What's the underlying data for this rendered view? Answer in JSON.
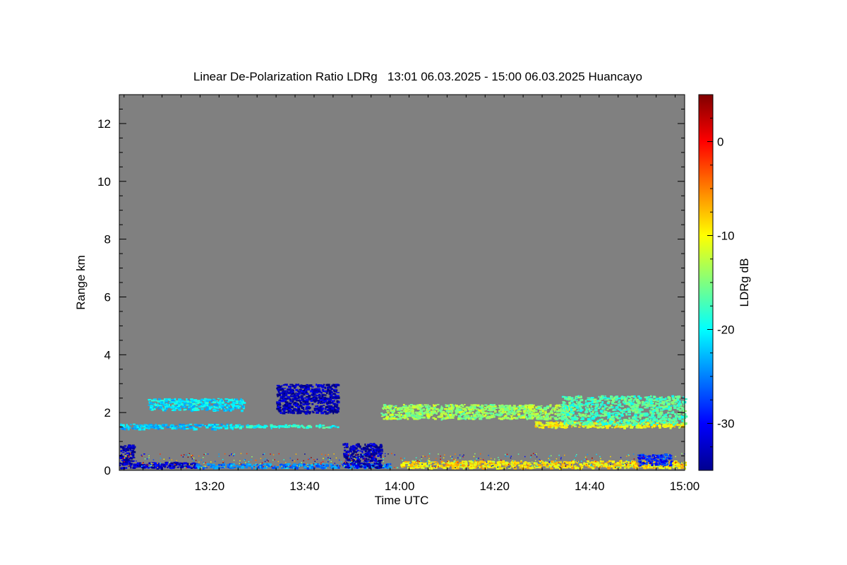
{
  "chart_data": {
    "type": "heatmap",
    "title": "Linear De-Polarization Ratio LDRg   13:01 06.03.2025 - 15:00 06.03.2025 Huancayo",
    "xlabel": "Time UTC",
    "ylabel": "Range km",
    "x_range_minutes_utc": [
      781,
      900
    ],
    "x_ticks": [
      {
        "minute": 800,
        "label": "13:20"
      },
      {
        "minute": 820,
        "label": "13:40"
      },
      {
        "minute": 840,
        "label": "14:00"
      },
      {
        "minute": 860,
        "label": "14:20"
      },
      {
        "minute": 880,
        "label": "14:40"
      },
      {
        "minute": 900,
        "label": "15:00"
      }
    ],
    "ylim": [
      0,
      13
    ],
    "y_ticks": [
      {
        "value": 0,
        "label": "0"
      },
      {
        "value": 2,
        "label": "2"
      },
      {
        "value": 4,
        "label": "4"
      },
      {
        "value": 6,
        "label": "6"
      },
      {
        "value": 8,
        "label": "8"
      },
      {
        "value": 10,
        "label": "10"
      },
      {
        "value": 12,
        "label": "12"
      }
    ],
    "background_color": "#808080",
    "colorbar": {
      "label": "LDRg dB",
      "range": [
        -35,
        5
      ],
      "ticks": [
        {
          "value": 0,
          "label": "0"
        },
        {
          "value": -10,
          "label": "-10"
        },
        {
          "value": -20,
          "label": "-20"
        },
        {
          "value": -30,
          "label": "-30"
        }
      ],
      "colormap": "jet"
    },
    "features": [
      {
        "name": "near-surface layer west",
        "t_start": 781,
        "t_end": 797,
        "z_bottom": 0.1,
        "z_top": 0.3,
        "ldr_db": -32
      },
      {
        "name": "near-surface layer west high",
        "t_start": 781,
        "t_end": 784,
        "z_bottom": 0.2,
        "z_top": 0.9,
        "ldr_db": -33
      },
      {
        "name": "near-surface layer mid",
        "t_start": 797,
        "t_end": 838,
        "z_bottom": 0.1,
        "z_top": 0.25,
        "ldr_db": -25
      },
      {
        "name": "near-surface aerosol east",
        "t_start": 840,
        "t_end": 900,
        "z_bottom": 0.1,
        "z_top": 0.35,
        "ldr_db": -9
      },
      {
        "name": "layer 1.5 km west",
        "t_start": 781,
        "t_end": 805,
        "z_bottom": 1.45,
        "z_top": 1.62,
        "ldr_db": -22
      },
      {
        "name": "layer 1.5 km mid",
        "t_start": 805,
        "t_end": 827,
        "z_bottom": 1.5,
        "z_top": 1.6,
        "ldr_db": -19
      },
      {
        "name": "layer 2.3 km west",
        "t_start": 787,
        "t_end": 807,
        "z_bottom": 2.1,
        "z_top": 2.5,
        "ldr_db": -21
      },
      {
        "name": "plume 13:35-13:45",
        "t_start": 814,
        "t_end": 827,
        "z_bottom": 2.0,
        "z_top": 3.0,
        "ldr_db": -33
      },
      {
        "name": "plume 13:50",
        "t_start": 828,
        "t_end": 836,
        "z_bottom": 0.1,
        "z_top": 0.95,
        "ldr_db": -33
      },
      {
        "name": "layer 2 km central",
        "t_start": 836,
        "t_end": 876,
        "z_bottom": 1.8,
        "z_top": 2.3,
        "ldr_db": -14
      },
      {
        "name": "layer 1.6 km east",
        "t_start": 868,
        "t_end": 900,
        "z_bottom": 1.5,
        "z_top": 1.7,
        "ldr_db": -10
      },
      {
        "name": "cloud 14:35-14:55",
        "t_start": 874,
        "t_end": 900,
        "z_bottom": 1.6,
        "z_top": 2.6,
        "ldr_db": -17
      },
      {
        "name": "low plume 14:50",
        "t_start": 890,
        "t_end": 897,
        "z_bottom": 0.2,
        "z_top": 0.6,
        "ldr_db": -29
      }
    ]
  }
}
